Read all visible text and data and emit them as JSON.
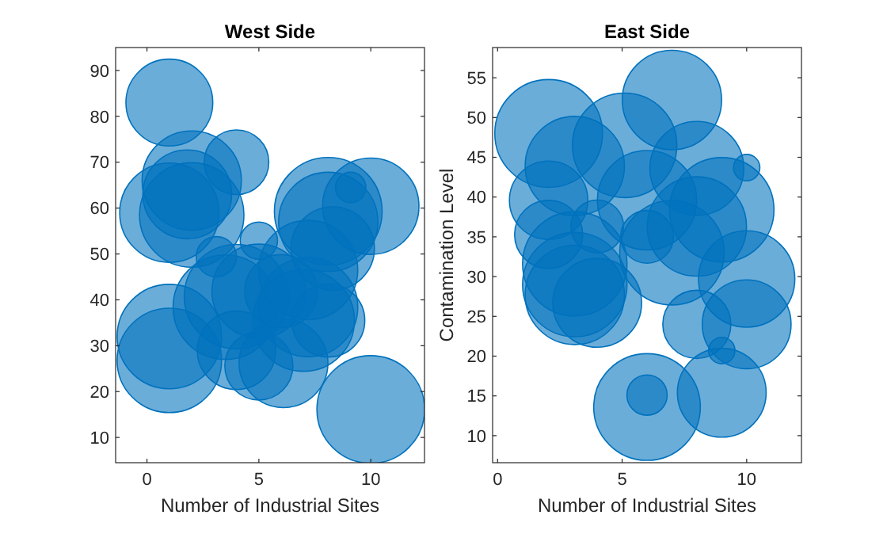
{
  "chart_data": [
    {
      "type": "bubble",
      "title": "West Side",
      "xlabel": "Number of Industrial Sites",
      "color": "#0072bd",
      "xlim": [
        -1.4,
        12.4
      ],
      "ylim": [
        4.5,
        95
      ],
      "xticks": [
        0,
        5,
        10
      ],
      "yticks": [
        10,
        20,
        30,
        40,
        50,
        60,
        70,
        80,
        90
      ],
      "x": [
        1,
        2,
        2,
        1,
        4,
        1.8,
        3.1,
        5,
        1,
        1,
        3.5,
        4,
        5,
        4,
        5,
        6.1,
        6,
        7.2,
        8.1,
        8.1,
        8.1,
        8.3,
        7.2,
        10,
        9.1,
        10,
        7
      ],
      "values": [
        83,
        66,
        58.5,
        59,
        70,
        63,
        49.4,
        52.9,
        32,
        26.8,
        38.4,
        40.7,
        41.9,
        29,
        25.6,
        26.2,
        41.9,
        38.4,
        35.5,
        59.3,
        57,
        51.2,
        46.5,
        60.4,
        64.5,
        16.1,
        35.5
      ],
      "sizes": [
        0.65,
        0.85,
        0.94,
        0.85,
        0.36,
        0.68,
        0.14,
        0.12,
        0.94,
        0.94,
        0.94,
        0.94,
        0.76,
        0.53,
        0.4,
        0.68,
        0.46,
        0.85,
        0.46,
        1,
        0.85,
        0.6,
        0.85,
        0.8,
        0.08,
        1,
        0.89
      ]
    },
    {
      "type": "bubble",
      "title": "East Side",
      "xlabel": "Number of Industrial Sites",
      "ylabel": "Contamination Level",
      "color": "#0072bd",
      "xlim": [
        -0.2,
        12.2
      ],
      "ylim": [
        6.6,
        58.8
      ],
      "xticks": [
        0,
        5,
        10
      ],
      "yticks": [
        10,
        15,
        20,
        25,
        30,
        35,
        40,
        45,
        50,
        55
      ],
      "x": [
        2.05,
        7,
        5.1,
        3.1,
        8,
        10,
        2.05,
        6,
        9,
        8,
        2.05,
        4,
        6,
        7,
        3.1,
        3.1,
        3.1,
        4,
        10,
        10,
        8,
        9,
        9,
        6,
        6
      ],
      "values": [
        48,
        52.2,
        46.5,
        43.9,
        43.6,
        43.7,
        39.6,
        39.6,
        38.4,
        36.3,
        35.3,
        36.3,
        35,
        33,
        31.6,
        29,
        27.7,
        26.7,
        29.7,
        24,
        24,
        20.7,
        15.4,
        13.6,
        15.1
      ],
      "sizes": [
        1,
        0.85,
        0.94,
        0.85,
        0.76,
        0.06,
        0.53,
        0.85,
        0.94,
        0.85,
        0.4,
        0.24,
        0.24,
        0.94,
        0.94,
        0.94,
        0.85,
        0.68,
        0.8,
        0.68,
        0.4,
        0.06,
        0.68,
        0.98,
        0.14
      ]
    }
  ]
}
